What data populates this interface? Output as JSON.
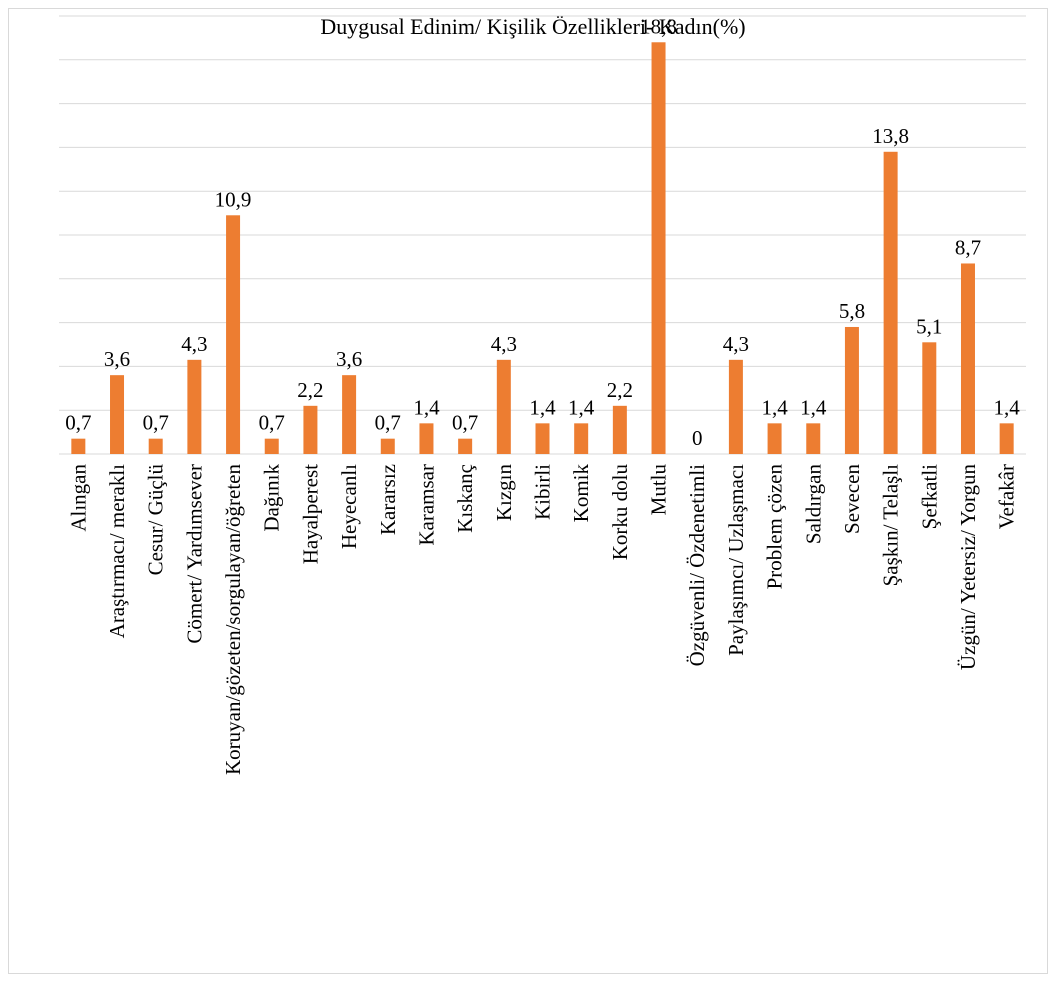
{
  "chart_data": {
    "type": "bar",
    "title": "Duygusal Edinim/ Kişilik Özellikleri- Kadın(%)",
    "xlabel": "",
    "ylabel": "",
    "ylim": [
      0,
      20
    ],
    "grid": true,
    "y_ticks_visible": false,
    "bar_color": "#ED7D31",
    "categories": [
      "Alıngan",
      "Araştırmacı/ meraklı",
      "Cesur/ Güçlü",
      "Cömert/ Yardımsever",
      "Koruyan/gözeten/sorgulayan/öğreten",
      "Dağınık",
      "Hayalperest",
      "Heyecanlı",
      "Kararsız",
      "Karamsar",
      "Kıskanç",
      "Kızgın",
      "Kibirli",
      "Komik",
      "Korku dolu",
      "Mutlu",
      "Özgüvenli/ Özdenetimli",
      "Paylaşımcı/ Uzlaşmacı",
      "Problem çözen",
      "Saldırgan",
      "Sevecen",
      "Şaşkın/ Telaşlı",
      "Şefkatli",
      "Üzgün/ Yetersiz/ Yorgun",
      "Vefakâr"
    ],
    "values": [
      0.7,
      3.6,
      0.7,
      4.3,
      10.9,
      0.7,
      2.2,
      3.6,
      0.7,
      1.4,
      0.7,
      4.3,
      1.4,
      1.4,
      2.2,
      18.8,
      0,
      4.3,
      1.4,
      1.4,
      5.8,
      13.8,
      5.1,
      8.7,
      1.4
    ],
    "data_labels": [
      "0,7",
      "3,6",
      "0,7",
      "4,3",
      "10,9",
      "0,7",
      "2,2",
      "3,6",
      "0,7",
      "1,4",
      "0,7",
      "4,3",
      "1,4",
      "1,4",
      "2,2",
      "18,8",
      "0",
      "4,3",
      "1,4",
      "1,4",
      "5,8",
      "13,8",
      "5,1",
      "8,7",
      "1,4"
    ]
  }
}
